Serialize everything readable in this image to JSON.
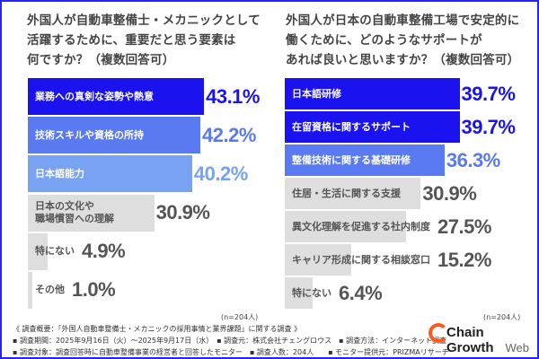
{
  "chart_data": [
    {
      "type": "bar",
      "orientation": "horizontal",
      "title": "外国人が自動車整備士・メカニックとして活躍するために、重要だと思う要素は何ですか？（複数回答可）",
      "title_lines": [
        "外国人が自動車整備士・メカニックとして",
        "活躍するために、重要だと思う要素は",
        "何ですか？（複数回答可）"
      ],
      "categories": [
        "業務への真剣な姿勢や熱意",
        "技術スキルや資格の所持",
        "日本語能力",
        "日本の文化や\n職場慣習への理解",
        "特にない",
        "その他"
      ],
      "values": [
        43.1,
        42.2,
        40.2,
        30.9,
        4.9,
        1.0
      ],
      "value_labels": [
        "43.1%",
        "42.2%",
        "40.2%",
        "30.9%",
        "4.9%",
        "1.0%"
      ],
      "colors": [
        "#1a13f0",
        "#5a7af2",
        "#78a2f2",
        "#dedede",
        "#dedede",
        "#dedede"
      ],
      "value_colors": [
        "#1a13f0",
        "#5a7af2",
        "#78a2f2",
        "#555555",
        "#555555",
        "#555555"
      ],
      "label_colors": [
        "#ffffff",
        "#ffffff",
        "#ffffff",
        "#555555",
        "#555555",
        "#555555"
      ],
      "unit": "%",
      "note": "(n=204人)",
      "xlim": [
        0,
        45
      ]
    },
    {
      "type": "bar",
      "orientation": "horizontal",
      "title": "外国人が日本の自動車整備工場で安定的に働くために、どのようなサポートがあれば良いと思いますか？（複数回答可）",
      "title_lines": [
        "外国人が日本の自動車整備工場で安定的に",
        "働くために、どのようなサポートが",
        "あれば良いと思いますか？（複数回答可）"
      ],
      "categories": [
        "日本語研修",
        "在留資格に関するサポート",
        "整備技術に関する基礎研修",
        "住居・生活に関する支援",
        "異文化理解を促進する社内制度",
        "キャリア形成に関する相談窓口",
        "特にない"
      ],
      "values": [
        39.7,
        39.7,
        36.3,
        30.9,
        27.5,
        15.2,
        6.4
      ],
      "value_labels": [
        "39.7%",
        "39.7%",
        "36.3%",
        "30.9%",
        "27.5%",
        "15.2%",
        "6.4%"
      ],
      "colors": [
        "#1a13f0",
        "#1a13f0",
        "#5a7af2",
        "#dedede",
        "#dedede",
        "#dedede",
        "#dedede"
      ],
      "value_colors": [
        "#1a13f0",
        "#1a13f0",
        "#5a7af2",
        "#555555",
        "#555555",
        "#555555",
        "#555555"
      ],
      "label_colors": [
        "#ffffff",
        "#ffffff",
        "#ffffff",
        "#555555",
        "#555555",
        "#555555",
        "#555555"
      ],
      "unit": "%",
      "note": "(n=204人)",
      "xlim": [
        0,
        40
      ]
    }
  ],
  "footer": {
    "line1": "《 調査概要：「外国人自動車整備士・メカニックの採用事情と業界課題」に関する調査 》",
    "line2": "▪ 調査期間：2025年9月16日（火）～2025年9月17日（水）　▪ 調査元：株式会社チェングロウス　▪ 調査方法：インターネット調査",
    "line3": "▪ 調査対象：調査回答時に自動車整備事業の経営者と回答したモニター　▪ 調査人数：204人　　▪ モニター提供元：PRIZMAリサーチ"
  },
  "logo": {
    "text": "Chain Growth",
    "sub": "Web"
  },
  "border_color": "#2323ff"
}
